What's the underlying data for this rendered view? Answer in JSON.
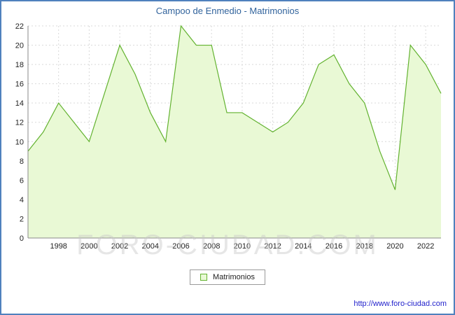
{
  "header": {
    "title": "Campoo de Enmedio - Matrimonios"
  },
  "legend": {
    "label": "Matrimonios"
  },
  "watermark": "FORO-CIUDAD.COM",
  "footer": {
    "url": "http://www.foro-ciudad.com"
  },
  "colors": {
    "frame": "#4f81bd",
    "title": "#31639c",
    "line": "#62b22f",
    "fill": "#e9f9d5",
    "grid": "#d9d9d9",
    "axis": "#8a8a8a",
    "tick_text": "#222222",
    "url": "#2323cc"
  },
  "chart_data": {
    "type": "area",
    "title": "Campoo de Enmedio - Matrimonios",
    "xlabel": "",
    "ylabel": "",
    "years": [
      1996,
      1997,
      1998,
      1999,
      2000,
      2001,
      2002,
      2003,
      2004,
      2005,
      2006,
      2007,
      2008,
      2009,
      2010,
      2011,
      2012,
      2013,
      2014,
      2015,
      2016,
      2017,
      2018,
      2019,
      2020,
      2021,
      2022,
      2023
    ],
    "values": [
      9,
      11,
      14,
      12,
      10,
      15,
      20,
      17,
      13,
      10,
      22,
      20,
      20,
      13,
      13,
      12,
      11,
      12,
      14,
      18,
      19,
      16,
      14,
      9,
      5,
      20,
      18,
      15
    ],
    "ylim": [
      0,
      22
    ],
    "ytick_step": 2,
    "xticks": [
      1998,
      2000,
      2002,
      2004,
      2006,
      2008,
      2010,
      2012,
      2014,
      2016,
      2018,
      2020,
      2022
    ],
    "grid": true,
    "legend_entries": [
      "Matrimonios"
    ],
    "legend_position": "bottom-center"
  }
}
